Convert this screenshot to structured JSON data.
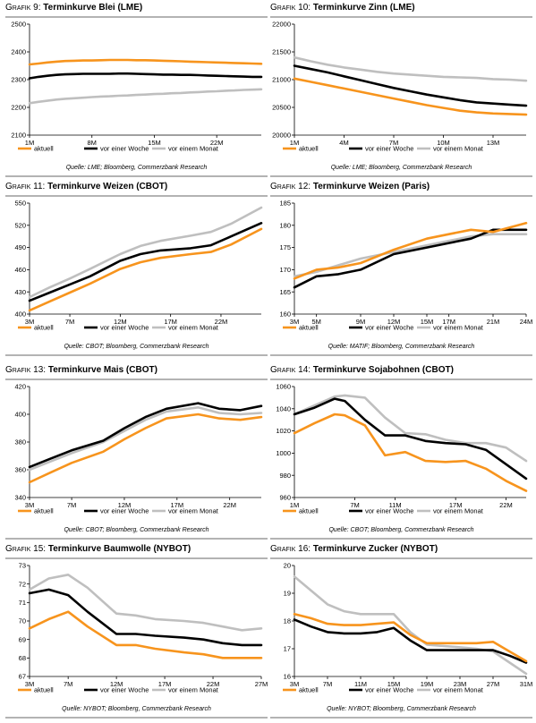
{
  "legend_labels": [
    "aktuell",
    "vor einer Woche",
    "vor einem Monat"
  ],
  "colors": [
    "#f7941d",
    "#000000",
    "#bfbfbf"
  ],
  "chart_data": [
    {
      "type": "line",
      "prefix": "Grafik 9:",
      "title": "Terminkurve Blei (LME)",
      "source": "Quelle: LME; Bloomberg, Commerzbank Research",
      "x": [
        1,
        2,
        3,
        4,
        5,
        6,
        7,
        8,
        9,
        10,
        11,
        12,
        13,
        14,
        15,
        16,
        17,
        18,
        19,
        20,
        21,
        22,
        23,
        24,
        25,
        26,
        27
      ],
      "xlim": [
        1,
        27
      ],
      "xticks": [
        1,
        8,
        15,
        22
      ],
      "xtick_labels": [
        "1M",
        "8M",
        "15M",
        "22M"
      ],
      "ylim": [
        2100,
        2500
      ],
      "yticks": [
        2100,
        2200,
        2300,
        2400,
        2500
      ],
      "series": [
        {
          "name": "aktuell",
          "values": [
            2355,
            2358,
            2362,
            2365,
            2367,
            2368,
            2369,
            2369,
            2370,
            2371,
            2371,
            2371,
            2370,
            2370,
            2369,
            2368,
            2367,
            2366,
            2365,
            2364,
            2363,
            2362,
            2361,
            2360,
            2359,
            2358,
            2357
          ]
        },
        {
          "name": "vor einer Woche",
          "values": [
            2305,
            2310,
            2314,
            2317,
            2319,
            2320,
            2321,
            2321,
            2321,
            2321,
            2322,
            2322,
            2321,
            2320,
            2319,
            2318,
            2318,
            2317,
            2317,
            2316,
            2315,
            2314,
            2313,
            2312,
            2311,
            2310,
            2310
          ]
        },
        {
          "name": "vor einem Monat",
          "values": [
            2215,
            2220,
            2224,
            2228,
            2231,
            2233,
            2235,
            2237,
            2239,
            2240,
            2242,
            2243,
            2245,
            2246,
            2248,
            2249,
            2251,
            2252,
            2254,
            2255,
            2257,
            2258,
            2260,
            2261,
            2263,
            2264,
            2265
          ]
        }
      ]
    },
    {
      "type": "line",
      "prefix": "Grafik 10:",
      "title": "Terminkurve Zinn (LME)",
      "source": "Quelle: LME; Bloomberg, Commerzbank Research",
      "x": [
        1,
        2,
        3,
        4,
        5,
        6,
        7,
        8,
        9,
        10,
        11,
        12,
        13,
        14,
        15
      ],
      "xlim": [
        1,
        15
      ],
      "xticks": [
        1,
        4,
        7,
        10,
        13
      ],
      "xtick_labels": [
        "1M",
        "4M",
        "7M",
        "10M",
        "13M"
      ],
      "ylim": [
        20000,
        22000
      ],
      "yticks": [
        20000,
        20500,
        21000,
        21500,
        22000
      ],
      "series": [
        {
          "name": "aktuell",
          "values": [
            21020,
            20960,
            20900,
            20840,
            20780,
            20720,
            20660,
            20600,
            20540,
            20490,
            20440,
            20410,
            20390,
            20380,
            20370
          ]
        },
        {
          "name": "vor einer Woche",
          "values": [
            21250,
            21190,
            21130,
            21060,
            20990,
            20920,
            20850,
            20790,
            20730,
            20680,
            20630,
            20590,
            20570,
            20550,
            20530
          ]
        },
        {
          "name": "vor einem Monat",
          "values": [
            21400,
            21330,
            21270,
            21220,
            21180,
            21140,
            21110,
            21090,
            21070,
            21050,
            21040,
            21030,
            21010,
            21000,
            20980
          ]
        }
      ]
    },
    {
      "type": "line",
      "prefix": "Grafik 11:",
      "title": "Terminkurve Weizen (CBOT)",
      "source": "Quelle: CBOT; Bloomberg, Commerzbank Research",
      "x": [
        3,
        5,
        7,
        9,
        12,
        14,
        16,
        19,
        21,
        23,
        26
      ],
      "xlim": [
        3,
        26
      ],
      "xticks": [
        3,
        7,
        12,
        17,
        22
      ],
      "xtick_labels": [
        "3M",
        "7M",
        "12M",
        "17M",
        "22M"
      ],
      "ylim": [
        400,
        550
      ],
      "yticks": [
        400,
        430,
        460,
        490,
        520,
        550
      ],
      "series": [
        {
          "name": "aktuell",
          "values": [
            405,
            417,
            429,
            441,
            461,
            470,
            476,
            481,
            484,
            494,
            515
          ]
        },
        {
          "name": "vor einer Woche",
          "values": [
            418,
            429,
            440,
            451,
            472,
            481,
            486,
            489,
            493,
            505,
            523
          ]
        },
        {
          "name": "vor einem Monat",
          "values": [
            423,
            436,
            448,
            461,
            481,
            492,
            499,
            506,
            511,
            522,
            544
          ]
        }
      ]
    },
    {
      "type": "line",
      "prefix": "Grafik 12:",
      "title": "Terminkurve Weizen (Paris)",
      "source": "Quelle: MATIF; Bloomberg, Commerzbank Research",
      "x": [
        3,
        5,
        7,
        9,
        12,
        15,
        17,
        19,
        21,
        24
      ],
      "xlim": [
        3,
        24
      ],
      "xticks": [
        3,
        5,
        9,
        12,
        15,
        17,
        21,
        24
      ],
      "xtick_labels": [
        "3M",
        "5M",
        "9M",
        "12M",
        "15M",
        "17M",
        "21M",
        "24M"
      ],
      "ylim": [
        160,
        185
      ],
      "yticks": [
        160,
        165,
        170,
        175,
        180,
        185
      ],
      "series": [
        {
          "name": "aktuell",
          "values": [
            168.0,
            170.0,
            170.5,
            171.5,
            174.5,
            177.0,
            178.0,
            179.0,
            178.5,
            180.5
          ]
        },
        {
          "name": "vor einer Woche",
          "values": [
            166.0,
            168.5,
            169.0,
            170.0,
            173.5,
            175.0,
            176.0,
            177.0,
            179.0,
            179.0
          ]
        },
        {
          "name": "vor einem Monat",
          "values": [
            168.5,
            169.5,
            171.0,
            172.5,
            174.0,
            175.5,
            176.5,
            177.5,
            178.0,
            178.0
          ]
        }
      ]
    },
    {
      "type": "line",
      "prefix": "Grafik 13:",
      "title": "Terminkurve Mais (CBOT)",
      "source": "Quelle: CBOT; Bloomberg, Commerzbank Research",
      "x": [
        3,
        5,
        7,
        10,
        12,
        14,
        16,
        19,
        21,
        23,
        25
      ],
      "xlim": [
        3,
        25
      ],
      "xticks": [
        3,
        7,
        12,
        17,
        22
      ],
      "xtick_labels": [
        "3M",
        "7M",
        "12M",
        "17M",
        "22M"
      ],
      "ylim": [
        340,
        420
      ],
      "yticks": [
        340,
        360,
        380,
        400,
        420
      ],
      "series": [
        {
          "name": "aktuell",
          "values": [
            351,
            358,
            365,
            373,
            382,
            390,
            397,
            400,
            397,
            396,
            398
          ]
        },
        {
          "name": "vor einer Woche",
          "values": [
            362,
            368,
            374,
            381,
            390,
            398,
            404,
            408,
            404,
            403,
            406
          ]
        },
        {
          "name": "vor einem Monat",
          "values": [
            360,
            366,
            372,
            380,
            388,
            396,
            402,
            405,
            401,
            400,
            401
          ]
        }
      ]
    },
    {
      "type": "line",
      "prefix": "Grafik 14:",
      "title": "Terminkurve Sojabohnen (CBOT)",
      "source": "Quelle: CBOT; Bloomberg, Commerzbank Research",
      "x": [
        1,
        3,
        5,
        6,
        8,
        10,
        12,
        14,
        16,
        18,
        20,
        22,
        24
      ],
      "xlim": [
        1,
        24
      ],
      "xticks": [
        1,
        7,
        11,
        17,
        22
      ],
      "xtick_labels": [
        "1M",
        "7M",
        "11M",
        "17M",
        "22M"
      ],
      "ylim": [
        960,
        1060
      ],
      "yticks": [
        960,
        980,
        1000,
        1020,
        1040,
        1060
      ],
      "series": [
        {
          "name": "aktuell",
          "values": [
            1018,
            1027,
            1035,
            1034,
            1025,
            998,
            1001,
            993,
            992,
            993,
            986,
            975,
            966
          ]
        },
        {
          "name": "vor einer Woche",
          "values": [
            1035,
            1041,
            1049,
            1047,
            1030,
            1016,
            1016,
            1011,
            1009,
            1008,
            1003,
            990,
            977
          ]
        },
        {
          "name": "vor einem Monat",
          "values": [
            1035,
            1043,
            1051,
            1052,
            1050,
            1032,
            1018,
            1017,
            1012,
            1009,
            1009,
            1005,
            993
          ]
        }
      ]
    },
    {
      "type": "line",
      "prefix": "Grafik 15:",
      "title": "Terminkurve Baumwolle (NYBOT)",
      "source": "Quelle: NYBOT; Bloomberg, Commerzbank Research",
      "x": [
        3,
        5,
        7,
        9,
        12,
        14,
        16,
        19,
        21,
        23,
        25,
        27
      ],
      "xlim": [
        3,
        27
      ],
      "xticks": [
        3,
        7,
        12,
        17,
        22,
        27
      ],
      "xtick_labels": [
        "3M",
        "7M",
        "12M",
        "17M",
        "22M",
        "27M"
      ],
      "ylim": [
        67,
        73
      ],
      "yticks": [
        67,
        68,
        69,
        70,
        71,
        72,
        73
      ],
      "series": [
        {
          "name": "aktuell",
          "values": [
            69.6,
            70.1,
            70.5,
            69.7,
            68.7,
            68.7,
            68.5,
            68.3,
            68.2,
            68.0,
            68.0,
            68.0
          ]
        },
        {
          "name": "vor einer Woche",
          "values": [
            71.5,
            71.7,
            71.4,
            70.5,
            69.3,
            69.3,
            69.2,
            69.1,
            69.0,
            68.8,
            68.7,
            68.7
          ]
        },
        {
          "name": "vor einem Monat",
          "values": [
            71.7,
            72.3,
            72.5,
            71.8,
            70.4,
            70.3,
            70.1,
            70.0,
            69.9,
            69.7,
            69.5,
            69.6
          ]
        }
      ]
    },
    {
      "type": "line",
      "prefix": "Grafik 16:",
      "title": "Terminkurve Zucker (NYBOT)",
      "source": "Quelle: NYBOT; Bloomberg, Commerzbank Research",
      "x": [
        3,
        5,
        7,
        9,
        11,
        13,
        15,
        17,
        19,
        21,
        23,
        25,
        27,
        29,
        31
      ],
      "xlim": [
        3,
        31
      ],
      "xticks": [
        3,
        7,
        11,
        15,
        19,
        23,
        27,
        31
      ],
      "xtick_labels": [
        "3M",
        "7M",
        "11M",
        "15M",
        "19M",
        "23M",
        "27M",
        "31M"
      ],
      "ylim": [
        16,
        20
      ],
      "yticks": [
        16,
        17,
        18,
        19,
        20
      ],
      "series": [
        {
          "name": "aktuell",
          "values": [
            18.25,
            18.1,
            17.9,
            17.85,
            17.85,
            17.9,
            17.95,
            17.5,
            17.2,
            17.2,
            17.2,
            17.2,
            17.25,
            16.9,
            16.55
          ]
        },
        {
          "name": "vor einer Woche",
          "values": [
            18.05,
            17.8,
            17.6,
            17.55,
            17.55,
            17.6,
            17.75,
            17.3,
            16.95,
            16.95,
            16.95,
            16.95,
            16.95,
            16.75,
            16.5
          ]
        },
        {
          "name": "vor einem Monat",
          "values": [
            19.6,
            19.1,
            18.6,
            18.35,
            18.25,
            18.25,
            18.25,
            17.6,
            17.15,
            17.1,
            17.05,
            17.0,
            16.9,
            16.5,
            16.1
          ]
        }
      ]
    }
  ]
}
